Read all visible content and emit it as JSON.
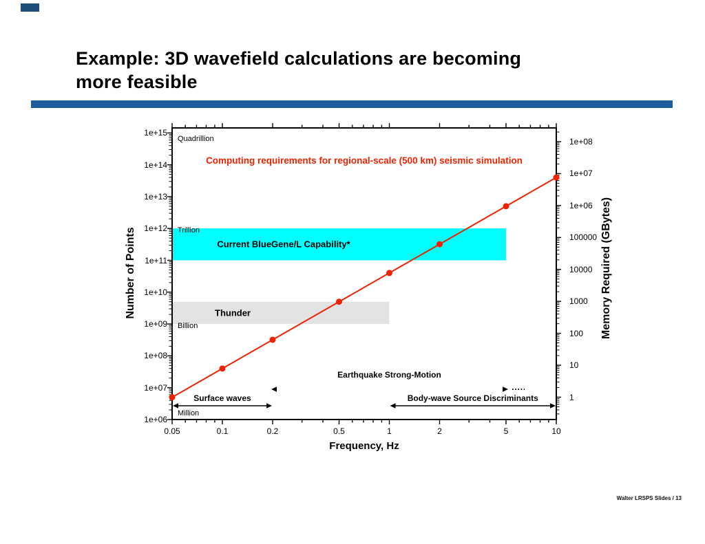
{
  "slide": {
    "title_line1": "Example: 3D wavefield calculations are becoming",
    "title_line2": "more feasible",
    "accent_color": "#1d5c9c",
    "corner_block_color": "#1f4e79",
    "footer": "Walter LRSPS Slides / 13"
  },
  "chart_data": {
    "type": "line",
    "title": "Computing requirements for regional-scale (500 km) seismic simulation",
    "title_color": "#ee2200",
    "xlabel": "Frequency, Hz",
    "ylabel_left": "Number of Points",
    "ylabel_right": "Memory Required (GBytes)",
    "x_scale": "log",
    "y_scale": "log",
    "grid": false,
    "legend": false,
    "xlim": [
      0.05,
      10
    ],
    "ylim_left": [
      1000000,
      1400000000000000
    ],
    "x_ticks": [
      0.05,
      0.1,
      0.2,
      0.5,
      1,
      2,
      5,
      10
    ],
    "x_tick_labels": [
      "0.05",
      "0.1",
      "0.2",
      "0.5",
      "1",
      "2",
      "5",
      "10"
    ],
    "y_ticks_left": [
      {
        "label": "1e+15",
        "value": 1000000000000000.0
      },
      {
        "label": "1e+14",
        "value": 100000000000000.0
      },
      {
        "label": "1e+13",
        "value": 10000000000000.0
      },
      {
        "label": "1e+12",
        "value": 1000000000000.0
      },
      {
        "label": "1e+11",
        "value": 100000000000.0
      },
      {
        "label": "1e+10",
        "value": 10000000000.0
      },
      {
        "label": "1e+09",
        "value": 1000000000.0
      },
      {
        "label": "1e+08",
        "value": 100000000.0
      },
      {
        "label": "1e+07",
        "value": 10000000.0
      },
      {
        "label": "1e+06",
        "value": 1000000.0
      }
    ],
    "y_ticks_right": [
      {
        "label": "1e+08",
        "value": 100000000.0
      },
      {
        "label": "1e+07",
        "value": 10000000.0
      },
      {
        "label": "1e+06",
        "value": 1000000.0
      },
      {
        "label": "100000",
        "value": 100000.0
      },
      {
        "label": "10000",
        "value": 10000.0
      },
      {
        "label": "1000",
        "value": 1000.0
      },
      {
        "label": "100",
        "value": 100
      },
      {
        "label": "10",
        "value": 10
      },
      {
        "label": "1",
        "value": 1
      }
    ],
    "series": [
      {
        "name": "computing-requirements",
        "color": "#ee2200",
        "marker": "circle",
        "x": [
          0.05,
          0.1,
          0.2,
          0.5,
          1,
          2,
          5,
          10
        ],
        "y": [
          5000000.0,
          40000000.0,
          320000000.0,
          5000000000.0,
          40000000000.0,
          320000000000.0,
          5000000000000.0,
          40000000000000.0
        ]
      }
    ],
    "bands": [
      {
        "label": "Current BlueGene/L Capability*",
        "color": "#00ffff",
        "x_range": [
          0.05,
          5
        ],
        "y_range": [
          100000000000.0,
          1000000000000.0
        ]
      },
      {
        "label": "Thunder",
        "color": "#e3e3e3",
        "x_range": [
          0.05,
          1
        ],
        "y_range": [
          1000000000.0,
          5000000000.0
        ]
      }
    ],
    "scale_labels": [
      {
        "text": "Quadrillion",
        "value": 1000000000000000.0
      },
      {
        "text": "Trillion",
        "value": 1000000000000.0
      },
      {
        "text": "Billion",
        "value": 1000000000.0
      },
      {
        "text": "Million",
        "value": 1000000.0
      }
    ],
    "annotations": [
      {
        "text": "Earthquake Strong-Motion",
        "style": "heads-with-dots",
        "x_range": [
          0.2,
          5
        ]
      },
      {
        "text": "Surface waves",
        "style": "double-arrow",
        "x_range": [
          0.05,
          0.2
        ]
      },
      {
        "text": "Body-wave Source Discriminants",
        "style": "double-arrow",
        "x_range": [
          1,
          10
        ]
      }
    ]
  }
}
